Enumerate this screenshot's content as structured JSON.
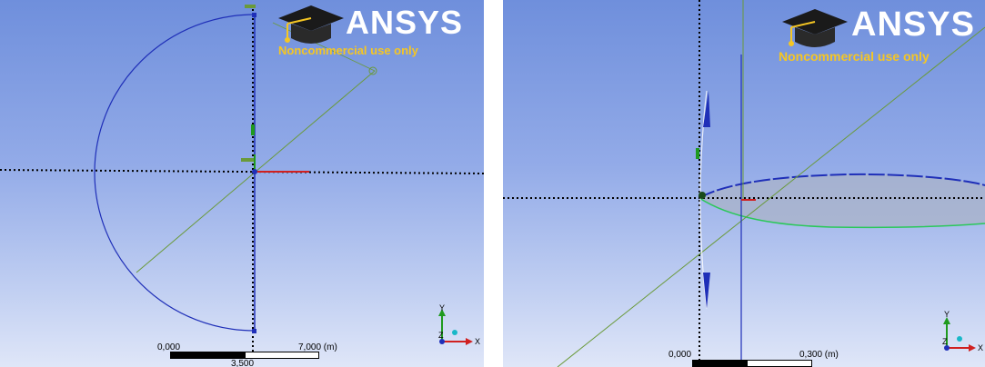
{
  "left_view": {
    "logo": {
      "brand": "ANSYS",
      "subtitle": "Noncommercial use only"
    },
    "scale": {
      "start": "0,000",
      "end": "7,000 (m)",
      "mid": "3,500"
    },
    "triad": {
      "y": "Y",
      "z": "Z",
      "x": "X"
    }
  },
  "right_view": {
    "logo": {
      "brand": "ANSYS",
      "subtitle": "Noncommercial use only"
    },
    "scale": {
      "start": "0,000",
      "end": "0,300 (m)"
    },
    "triad": {
      "y": "Y",
      "z": "Z",
      "x": "X"
    }
  },
  "colors": {
    "background_top": "#6f8fdc",
    "background_bottom": "#dfe6f8",
    "sketch_line": "#1f2fb8",
    "construction_line": "#6a9a3a",
    "axis_x": "#d02020",
    "axis_y": "#1f9a1f",
    "logo_yellow": "#f5c623",
    "airfoil_fill": "#a9b3c8"
  }
}
